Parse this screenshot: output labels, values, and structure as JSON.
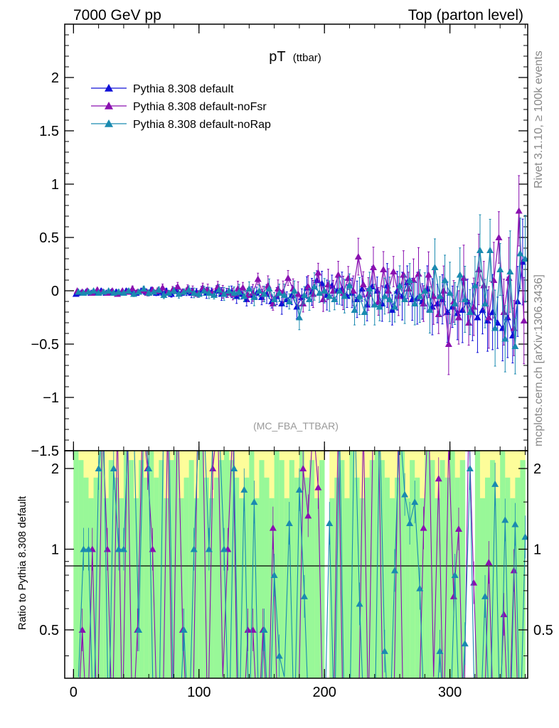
{
  "header": {
    "left": "7000 GeV pp",
    "right": "Top (parton level)"
  },
  "side_text": {
    "rivet": "Rivet 3.1.10, ≥ 100k events",
    "mcplots": "mcplots.cern.ch [arXiv:1306.3436]"
  },
  "chart_data": [
    {
      "type": "line",
      "title": "pT",
      "title_suffix": "(ttbar)",
      "watermark": "(MC_FBA_TTBAR)",
      "xlim": [
        -7,
        362
      ],
      "ylim": [
        -1.5,
        2.5
      ],
      "x_ticks": [
        0,
        100,
        200,
        300
      ],
      "x_tick_labels": [
        "0",
        "100",
        "200",
        "300"
      ],
      "y_ticks": [
        -1.5,
        -1,
        -0.5,
        0,
        0.5,
        1,
        1.5,
        2
      ],
      "y_tick_labels": [
        "−1.5",
        "−1",
        "−0.5",
        "0",
        "0.5",
        "1",
        "1.5",
        "2"
      ],
      "legend_position": "top-left",
      "series": [
        {
          "name": "Pythia 8.308 default",
          "color": "#1010d8",
          "x": [
            2,
            6,
            10,
            14,
            18,
            22,
            26,
            30,
            34,
            38,
            42,
            46,
            50,
            54,
            58,
            62,
            66,
            70,
            74,
            78,
            82,
            86,
            90,
            94,
            98,
            102,
            106,
            110,
            114,
            118,
            122,
            126,
            130,
            134,
            138,
            142,
            146,
            150,
            154,
            158,
            162,
            166,
            170,
            174,
            178,
            182,
            186,
            190,
            194,
            198,
            202,
            206,
            210,
            214,
            218,
            222,
            226,
            230,
            234,
            238,
            242,
            246,
            250,
            254,
            258,
            262,
            266,
            270,
            274,
            278,
            282,
            286,
            290,
            294,
            298,
            302,
            306,
            310,
            314,
            318,
            322,
            326,
            330,
            334,
            338,
            342,
            346,
            350,
            354,
            358
          ],
          "y": [
            -0.03,
            -0.02,
            -0.01,
            -0.02,
            -0.01,
            0.0,
            -0.02,
            -0.01,
            -0.01,
            -0.02,
            0.0,
            -0.01,
            -0.02,
            0.0,
            -0.01,
            0.01,
            -0.02,
            -0.01,
            0.0,
            -0.03,
            0.01,
            -0.02,
            -0.01,
            -0.02,
            -0.01,
            0.0,
            -0.02,
            -0.01,
            0.0,
            -0.03,
            -0.02,
            -0.01,
            -0.05,
            -0.03,
            -0.08,
            -0.04,
            -0.02,
            -0.06,
            -0.03,
            -0.1,
            -0.05,
            -0.12,
            -0.08,
            -0.04,
            -0.15,
            -0.06,
            0.03,
            -0.01,
            0.1,
            0.07,
            -0.04,
            0.05,
            0.0,
            0.02,
            -0.05,
            -0.02,
            -0.08,
            0.02,
            -0.13,
            0.04,
            0.0,
            -0.12,
            0.05,
            -0.18,
            0.0,
            -0.05,
            0.08,
            -0.08,
            -0.07,
            -0.1,
            0.02,
            -0.15,
            -0.12,
            -0.08,
            -0.2,
            -0.15,
            -0.21,
            -0.18,
            -0.1,
            -0.2,
            -0.25,
            -0.18,
            -0.28,
            -0.2,
            -0.3,
            -0.35,
            -0.25,
            -0.42,
            -0.1,
            0.27
          ]
        },
        {
          "name": "Pythia 8.308 default-noFsr",
          "color": "#8a10b0",
          "x": [
            3,
            7,
            11,
            15,
            19,
            23,
            27,
            31,
            35,
            39,
            43,
            47,
            51,
            55,
            59,
            63,
            67,
            71,
            75,
            79,
            83,
            87,
            91,
            95,
            99,
            103,
            107,
            111,
            115,
            119,
            123,
            127,
            131,
            135,
            139,
            143,
            147,
            151,
            155,
            159,
            163,
            167,
            171,
            175,
            179,
            183,
            187,
            191,
            195,
            199,
            203,
            207,
            211,
            215,
            219,
            223,
            227,
            231,
            235,
            239,
            243,
            247,
            251,
            255,
            259,
            263,
            267,
            271,
            275,
            279,
            283,
            287,
            291,
            295,
            299,
            303,
            307,
            311,
            315,
            319,
            323,
            327,
            331,
            335,
            339,
            343,
            347,
            351,
            355,
            359
          ],
          "y": [
            0.0,
            -0.01,
            0.0,
            -0.02,
            0.01,
            -0.01,
            -0.02,
            0.0,
            -0.03,
            0.0,
            -0.01,
            0.02,
            -0.01,
            0.0,
            -0.02,
            0.01,
            0.0,
            0.03,
            -0.02,
            0.01,
            0.04,
            -0.01,
            0.02,
            0.0,
            -0.03,
            0.03,
            0.01,
            -0.02,
            0.04,
            -0.01,
            -0.02,
            -0.03,
            0.02,
            0.03,
            -0.04,
            -0.02,
            0.11,
            -0.03,
            0.05,
            -0.12,
            0.02,
            -0.01,
            0.12,
            0.02,
            -0.03,
            -0.12,
            0.04,
            -0.03,
            0.17,
            -0.08,
            0.06,
            0.0,
            0.15,
            -0.02,
            0.12,
            0.0,
            0.32,
            0.06,
            -0.03,
            0.22,
            -0.1,
            0.2,
            0.0,
            0.18,
            -0.05,
            0.15,
            0.02,
            0.1,
            0.16,
            -0.12,
            0.15,
            -0.05,
            -0.22,
            0.0,
            -0.5,
            -0.1,
            -0.25,
            0.12,
            -0.3,
            -0.15,
            0.2,
            0.05,
            -0.25,
            0.1,
            0.5,
            -0.2,
            0.12,
            -0.35,
            0.75,
            -0.28
          ]
        },
        {
          "name": "Pythia 8.308 default-noRap",
          "color": "#1a8ab0",
          "x": [
            4,
            8,
            12,
            16,
            20,
            24,
            28,
            32,
            36,
            40,
            44,
            48,
            52,
            56,
            60,
            64,
            68,
            72,
            76,
            80,
            84,
            88,
            92,
            96,
            100,
            104,
            108,
            112,
            116,
            120,
            124,
            128,
            132,
            136,
            140,
            144,
            148,
            152,
            156,
            160,
            164,
            168,
            172,
            176,
            180,
            184,
            188,
            192,
            196,
            200,
            204,
            208,
            212,
            216,
            220,
            224,
            228,
            232,
            236,
            240,
            244,
            248,
            252,
            256,
            260,
            264,
            268,
            272,
            276,
            280,
            284,
            288,
            292,
            296,
            300,
            304,
            308,
            312,
            316,
            320,
            324,
            328,
            332,
            336,
            340,
            344,
            348,
            352,
            356,
            360
          ],
          "y": [
            -0.01,
            -0.02,
            -0.01,
            0.0,
            -0.02,
            -0.01,
            0.0,
            -0.02,
            -0.01,
            -0.02,
            0.0,
            -0.03,
            -0.01,
            0.02,
            -0.02,
            -0.01,
            0.01,
            -0.04,
            -0.02,
            0.0,
            -0.03,
            -0.01,
            0.01,
            -0.02,
            -0.03,
            0.0,
            -0.02,
            -0.04,
            0.01,
            -0.03,
            0.0,
            -0.02,
            -0.01,
            -0.05,
            0.02,
            -0.06,
            0.0,
            -0.03,
            0.02,
            -0.08,
            -0.02,
            -0.04,
            -0.1,
            0.0,
            -0.25,
            -0.04,
            -0.08,
            0.04,
            -0.02,
            0.0,
            -0.05,
            -0.08,
            0.0,
            -0.05,
            0.05,
            -0.18,
            -0.05,
            -0.2,
            0.02,
            -0.13,
            -0.15,
            -0.05,
            -0.08,
            -0.15,
            0.05,
            -0.08,
            0.1,
            -0.12,
            -0.05,
            0.0,
            -0.18,
            0.22,
            -0.05,
            0.1,
            -0.02,
            -0.12,
            0.15,
            -0.08,
            -0.2,
            0.05,
            0.38,
            -0.12,
            0.38,
            -0.35,
            0.2,
            -0.45,
            0.18,
            -0.52,
            0.35,
            0.3
          ]
        }
      ]
    },
    {
      "type": "line",
      "ylabel": "Ratio to Pythia 8.308 default",
      "xlim": [
        -7,
        362
      ],
      "ylim": [
        0.33,
        2.33
      ],
      "x_ticks": [
        0,
        100,
        200,
        300
      ],
      "x_tick_labels": [
        "0",
        "100",
        "200",
        "300"
      ],
      "y_ticks": [
        0.5,
        1,
        2
      ],
      "y_tick_labels": [
        "0.5",
        "1",
        "2"
      ],
      "reference_line": 1
    }
  ]
}
